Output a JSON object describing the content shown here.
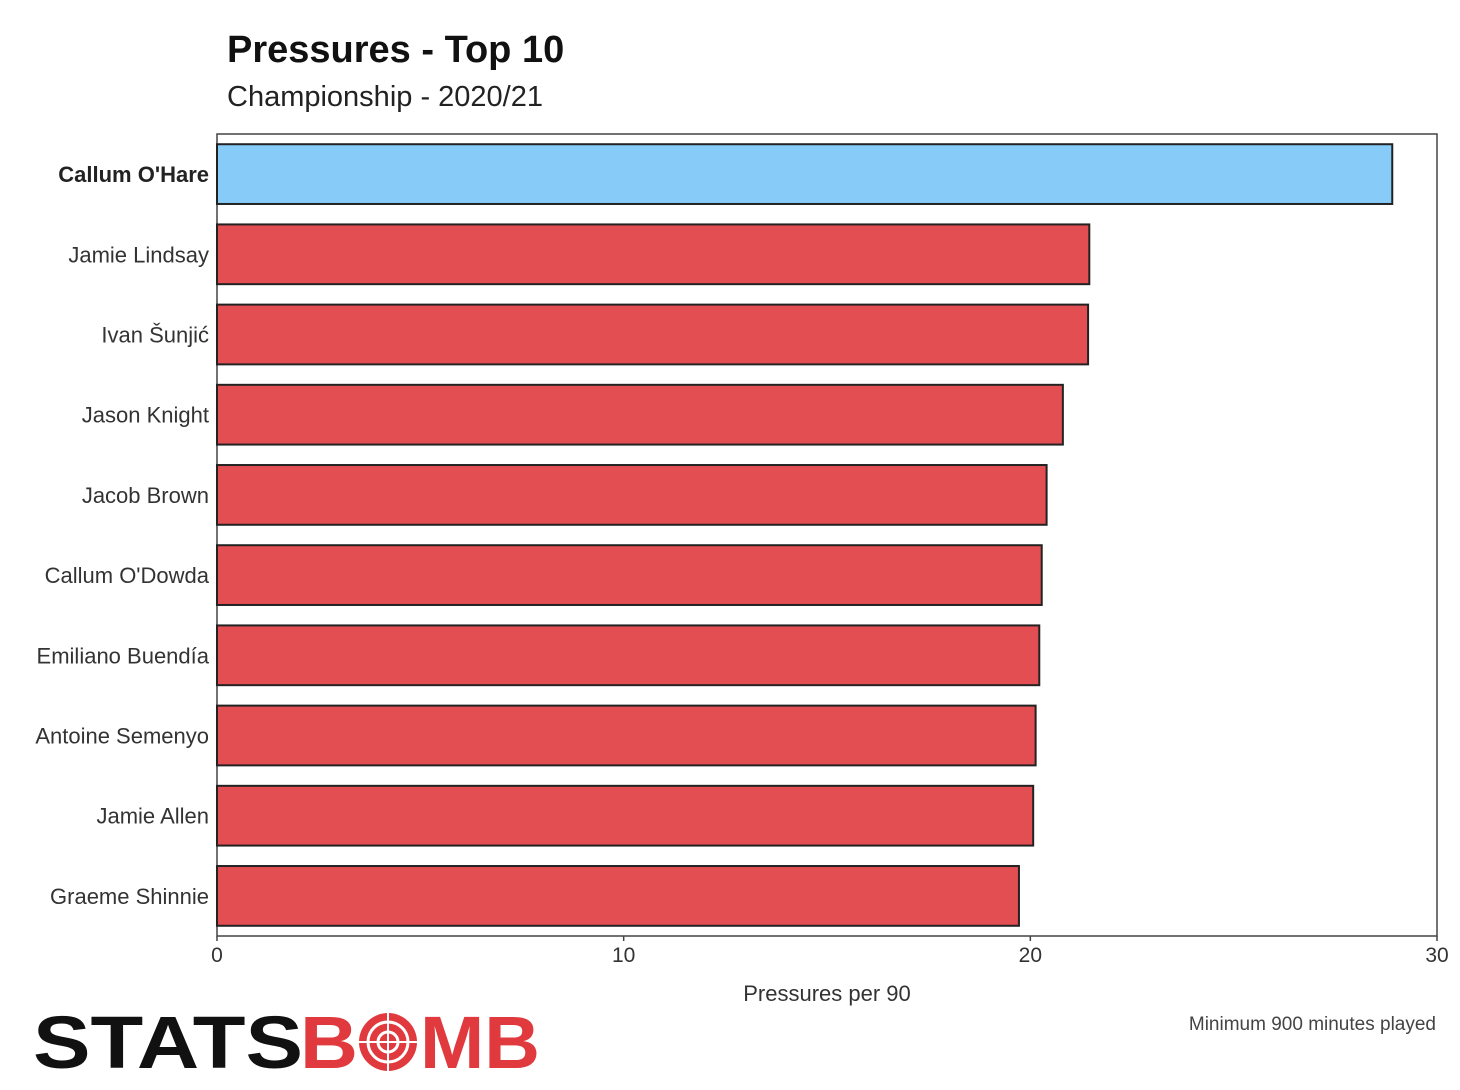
{
  "chart_data": {
    "type": "bar",
    "orientation": "horizontal",
    "title": "Pressures - Top 10",
    "subtitle": "Championship - 2020/21",
    "xlabel": "Pressures per 90",
    "ylabel": "",
    "xlim": [
      0,
      30
    ],
    "xticks": [
      "0",
      "10",
      "20",
      "30"
    ],
    "grid": false,
    "categories": [
      "Callum O'Hare",
      "Jamie Lindsay",
      "Ivan Šunjić",
      "Jason Knight",
      "Jacob Brown",
      "Callum O'Dowda",
      "Emiliano Buendía",
      "Antoine Semenyo",
      "Jamie Allen",
      "Graeme Shinnie"
    ],
    "values": [
      28.9,
      21.45,
      21.42,
      20.8,
      20.4,
      20.28,
      20.22,
      20.13,
      20.07,
      19.72
    ],
    "highlight_index": 0,
    "colors": {
      "highlight": "#87cbf9",
      "default": "#e24e52",
      "outline": "#222222"
    },
    "footnote": "Minimum 900 minutes played"
  },
  "branding": {
    "logo_left": "STATS",
    "logo_right": "MB",
    "logo_color_left": "#111111",
    "logo_color_right": "#e03a3e"
  }
}
